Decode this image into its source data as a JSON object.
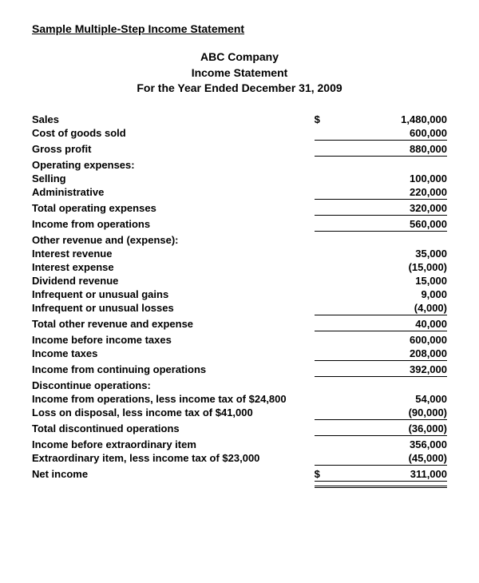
{
  "title": "Sample Multiple-Step Income Statement",
  "company": "ABC Company",
  "statement": "Income Statement",
  "period": "For the Year Ended December 31, 2009",
  "currency": "$",
  "rows": [
    {
      "label": "Sales",
      "indent": 0,
      "amount": "1,480,000",
      "currency": true,
      "rule": "none"
    },
    {
      "label": "Cost of goods sold",
      "indent": 0,
      "amount": "600,000",
      "currency": false,
      "rule": "under"
    },
    {
      "label": "Gross profit",
      "indent": 1,
      "amount": "880,000",
      "currency": false,
      "rule": "under"
    },
    {
      "label": "Operating expenses:",
      "indent": 0,
      "amount": "",
      "currency": false,
      "rule": "none"
    },
    {
      "label": "Selling",
      "indent": 1,
      "amount": "100,000",
      "currency": false,
      "rule": "none"
    },
    {
      "label": "Administrative",
      "indent": 1,
      "amount": "220,000",
      "currency": false,
      "rule": "under"
    },
    {
      "label": "Total operating expenses",
      "indent": 2,
      "amount": "320,000",
      "currency": false,
      "rule": "under"
    },
    {
      "label": "Income from operations",
      "indent": 0,
      "amount": "560,000",
      "currency": false,
      "rule": "under"
    },
    {
      "label": "Other revenue and (expense):",
      "indent": 0,
      "amount": "",
      "currency": false,
      "rule": "none"
    },
    {
      "label": "Interest revenue",
      "indent": 1,
      "amount": "35,000",
      "currency": false,
      "rule": "none"
    },
    {
      "label": "Interest expense",
      "indent": 1,
      "amount": "(15,000)",
      "currency": false,
      "rule": "none"
    },
    {
      "label": "Dividend revenue",
      "indent": 1,
      "amount": "15,000",
      "currency": false,
      "rule": "none"
    },
    {
      "label": "Infrequent or unusual gains",
      "indent": 1,
      "amount": "9,000",
      "currency": false,
      "rule": "none"
    },
    {
      "label": "Infrequent or unusual losses",
      "indent": 1,
      "amount": "(4,000)",
      "currency": false,
      "rule": "under"
    },
    {
      "label": "Total other revenue and expense",
      "indent": 2,
      "amount": "40,000",
      "currency": false,
      "rule": "under"
    },
    {
      "label": "Income before income taxes",
      "indent": 0,
      "amount": "600,000",
      "currency": false,
      "rule": "none"
    },
    {
      "label": "Income taxes",
      "indent": 1,
      "amount": "208,000",
      "currency": false,
      "rule": "under"
    },
    {
      "label": "Income from continuing operations",
      "indent": 0,
      "amount": "392,000",
      "currency": false,
      "rule": "under"
    },
    {
      "label": "Discontinue operations:",
      "indent": 0,
      "amount": "",
      "currency": false,
      "rule": "none"
    },
    {
      "label": "Income from operations, less income tax of $24,800",
      "indent": 1,
      "amount": "54,000",
      "currency": false,
      "rule": "none"
    },
    {
      "label": "Loss on disposal, less income tax of $41,000",
      "indent": 1,
      "amount": "(90,000)",
      "currency": false,
      "rule": "under"
    },
    {
      "label": "Total discontinued operations",
      "indent": 2,
      "amount": "(36,000)",
      "currency": false,
      "rule": "under"
    },
    {
      "label": "Income before extraordinary item",
      "indent": 0,
      "amount": "356,000",
      "currency": false,
      "rule": "none"
    },
    {
      "label": "Extraordinary item, less income tax of $23,000",
      "indent": 0,
      "amount": "(45,000)",
      "currency": false,
      "rule": "under"
    },
    {
      "label": "Net income",
      "indent": 0,
      "amount": "311,000",
      "currency": true,
      "rule": "double"
    }
  ]
}
